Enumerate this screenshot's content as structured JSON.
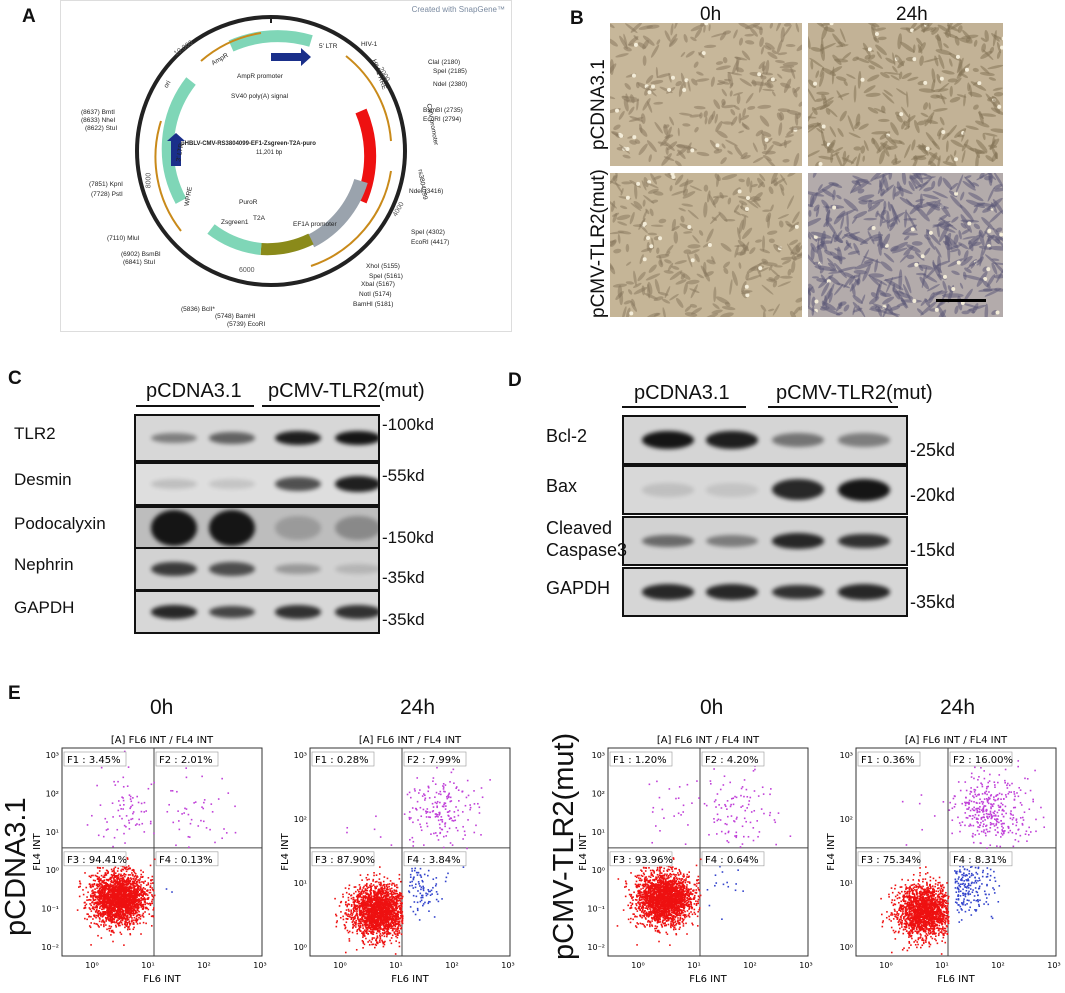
{
  "panelA": {
    "letter": "A",
    "credit": "Created with SnapGene™",
    "name": "pHBLV-CMV-RS3804099-EF1-Zsgreen-T2A-puro",
    "size": "11,201 bp",
    "ticks": [
      "2000",
      "4000",
      "6000",
      "8000",
      "10,000"
    ],
    "features": [
      "5' LTR",
      "HIV-1",
      "HIV-1 RRE",
      "CMV promoter",
      "rs3804099",
      "EF1A promoter",
      "Zsgreen1",
      "T2A",
      "PuroR",
      "WPRE",
      "3' LTR",
      "ori",
      "AmpR",
      "AmpR promoter",
      "SV40 poly(A) signal"
    ],
    "sites_right": [
      "ClaI (2180)",
      "SpeI (2185)",
      "NdeI (2380)",
      "BsmBI (2735)",
      "EcoRI (2794)",
      "NdeI (3416)",
      "SpeI (4302)",
      "EcoRI (4417)",
      "XhoI (5155)",
      "SpeI (5161)",
      "XbaI (5167)",
      "NotI (5174)",
      "BamHI (5181)"
    ],
    "sites_left": [
      "(8637) BmtI",
      "(8633) NheI",
      "(8622) StuI",
      "(7851) KpnI",
      "(7728) PstI",
      "(7110) MluI",
      "(6902) BsmBI",
      "(6841) StuI",
      "(5836) BclI*",
      "(5748) BamHI",
      "(5739) EcoRI"
    ]
  },
  "panelB": {
    "letter": "B",
    "col_labels": [
      "0h",
      "24h"
    ],
    "row_labels": [
      "pCDNA3.1",
      "pCMV-TLR2(mut)"
    ]
  },
  "panelC": {
    "letter": "C",
    "groups": [
      "pCDNA3.1",
      "pCMV-TLR2(mut)"
    ],
    "rows": [
      {
        "name": "TLR2",
        "mw": "-100kd",
        "intensity": [
          0.45,
          0.6,
          0.95,
          1.0
        ]
      },
      {
        "name": "Desmin",
        "mw": "-55kd",
        "intensity": [
          0.15,
          0.12,
          0.7,
          0.95
        ]
      },
      {
        "name": "Podocalyxin",
        "mw": "-150kd",
        "intensity": [
          1.0,
          1.0,
          0.2,
          0.3
        ]
      },
      {
        "name": "Nephrin",
        "mw": "-35kd",
        "intensity": [
          0.8,
          0.7,
          0.3,
          0.15
        ]
      },
      {
        "name": "GAPDH",
        "mw": "-35kd",
        "intensity": [
          0.9,
          0.75,
          0.85,
          0.85
        ]
      }
    ]
  },
  "panelD": {
    "letter": "D",
    "groups": [
      "pCDNA3.1",
      "pCMV-TLR2(mut)"
    ],
    "rows": [
      {
        "name": "Bcl-2",
        "mw": "-25kd",
        "intensity": [
          1.0,
          0.95,
          0.5,
          0.45
        ]
      },
      {
        "name": "Bax",
        "mw": "-20kd",
        "intensity": [
          0.12,
          0.1,
          0.9,
          1.0
        ]
      },
      {
        "name": "Cleaved Caspase3",
        "name_line1": "Cleaved",
        "name_line2": "Caspase3",
        "mw": "-15kd",
        "intensity": [
          0.55,
          0.45,
          0.9,
          0.85
        ]
      },
      {
        "name": "GAPDH",
        "mw": "-35kd",
        "intensity": [
          0.9,
          0.9,
          0.85,
          0.9
        ]
      }
    ]
  },
  "panelE": {
    "letter": "E",
    "group_labels": [
      "pCDNA3.1",
      "pCMV-TLR2(mut)"
    ],
    "plots": [
      {
        "time": "0h",
        "F1": "F1 : 3.45%",
        "F2": "F2 : 2.01%",
        "F3": "F3 : 94.41%",
        "F4": "F4 : 0.13%",
        "pct": [
          3.45,
          2.01,
          94.41,
          0.13
        ]
      },
      {
        "time": "24h",
        "F1": "F1 : 0.28%",
        "F2": "F2 : 7.99%",
        "F3": "F3 : 87.90%",
        "F4": "F4 : 3.84%",
        "pct": [
          0.28,
          7.99,
          87.9,
          3.84
        ]
      },
      {
        "time": "0h",
        "F1": "F1 : 1.20%",
        "F2": "F2 : 4.20%",
        "F3": "F3 : 93.96%",
        "F4": "F4 : 0.64%",
        "pct": [
          1.2,
          4.2,
          93.96,
          0.64
        ]
      },
      {
        "time": "24h",
        "F1": "F1 : 0.36%",
        "F2": "F2 : 16.00%",
        "F3": "F3 : 75.34%",
        "F4": "F4 : 8.31%",
        "pct": [
          0.36,
          16.0,
          75.34,
          8.31
        ]
      }
    ],
    "plot_title": "[A] FL6 INT / FL4 INT",
    "xlabel": "FL6 INT",
    "ylabel": "FL4 INT",
    "ticks": [
      "10⁰",
      "10¹",
      "10²",
      "10³"
    ],
    "yticks_small": [
      "10⁻²",
      "10⁻¹",
      "10⁰",
      "10¹",
      "10²",
      "10³"
    ]
  },
  "colors": {
    "red_dots": "#ee1111",
    "purple_dots": "#c040d8",
    "blue_dots": "#3344cc",
    "bands": "#151515"
  }
}
